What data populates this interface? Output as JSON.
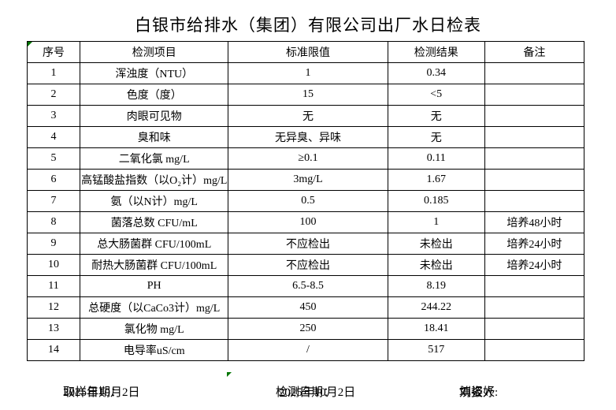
{
  "title": "白银市给排水（集团）有限公司出厂水日检表",
  "table": {
    "headers": [
      "序号",
      "检测项目",
      "标准限值",
      "检测结果",
      "备注"
    ],
    "rows": [
      {
        "no": "1",
        "item": "浑浊度（NTU）",
        "limit": "1",
        "result": "0.34",
        "note": ""
      },
      {
        "no": "2",
        "item": "色度（度）",
        "limit": "15",
        "result": "<5",
        "note": ""
      },
      {
        "no": "3",
        "item": "肉眼可见物",
        "limit": "无",
        "result": "无",
        "note": ""
      },
      {
        "no": "4",
        "item": "臭和味",
        "limit": "无异臭、异味",
        "result": "无",
        "note": ""
      },
      {
        "no": "5",
        "item": "二氧化氯 mg/L",
        "limit": "≥0.1",
        "result": "0.11",
        "note": ""
      },
      {
        "no": "6",
        "item": "高锰酸盐指数（以O₂计）mg/L",
        "limit": "3mg/L",
        "result": "1.67",
        "note": ""
      },
      {
        "no": "7",
        "item": "氨（以N计）mg/L",
        "limit": "0.5",
        "result": "0.185",
        "note": ""
      },
      {
        "no": "8",
        "item": "菌落总数 CFU/mL",
        "limit": "100",
        "result": "1",
        "note": "培养48小时"
      },
      {
        "no": "9",
        "item": "总大肠菌群 CFU/100mL",
        "limit": "不应检出",
        "result": "未检出",
        "note": "培养24小时"
      },
      {
        "no": "10",
        "item": "耐热大肠菌群 CFU/100mL",
        "limit": "不应检出",
        "result": "未检出",
        "note": "培养24小时"
      },
      {
        "no": "11",
        "item": "PH",
        "limit": "6.5-8.5",
        "result": "8.19",
        "note": ""
      },
      {
        "no": "12",
        "item": "总硬度（以CaCo3计）mg/L",
        "limit": "450",
        "result": "244.22",
        "note": ""
      },
      {
        "no": "13",
        "item": "氯化物 mg/L",
        "limit": "250",
        "result": "18.41",
        "note": ""
      },
      {
        "no": "14",
        "item": "电导率uS/cm",
        "limit": "/",
        "result": "517",
        "note": ""
      }
    ]
  },
  "footer": {
    "sample_date_label": "取样日期：",
    "sample_date": "2025年10月2日",
    "test_date_label": "检测日期：",
    "test_date": "2025年10月2日",
    "reporter_label": "填报人:",
    "reporter_name": "刘姿妤"
  },
  "colors": {
    "background": "#ffffff",
    "border": "#000000",
    "text": "#000000",
    "cell_marker_green": "#007500"
  },
  "icons": {
    "cell_marker": "excel-green-corner-triangle"
  }
}
